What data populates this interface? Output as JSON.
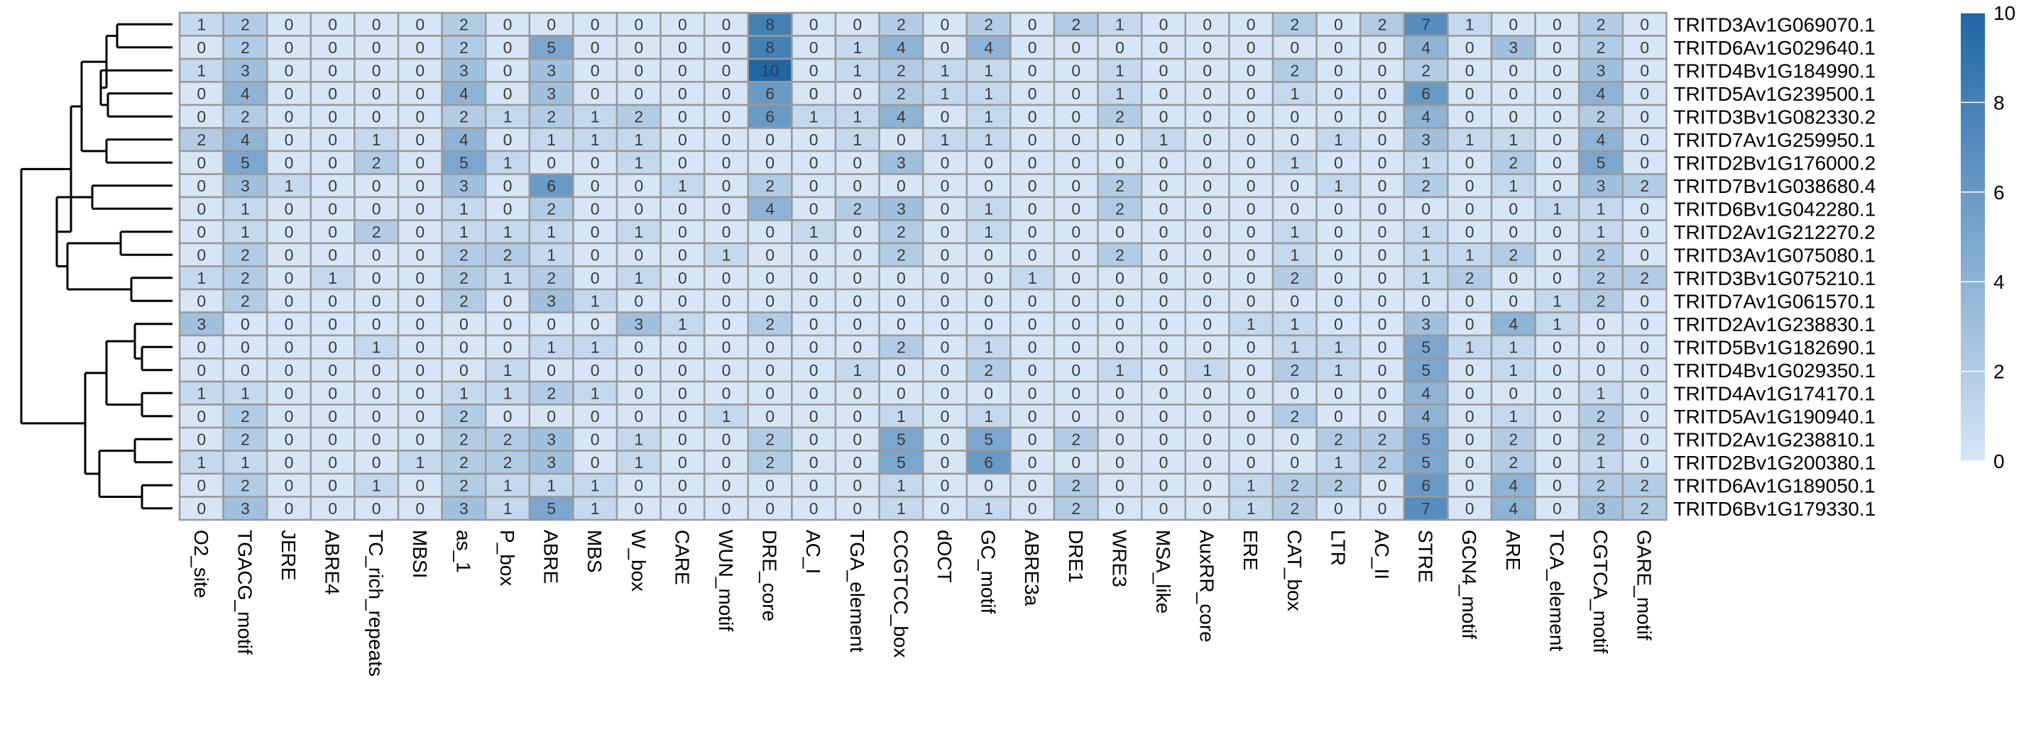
{
  "chart_data": {
    "type": "heatmap",
    "title": "",
    "xlabel": "",
    "ylabel": "",
    "columns": [
      "O2_site",
      "TGACG_motif",
      "JERE",
      "ABRE4",
      "TC_rich_repeats",
      "MBSI",
      "as_1",
      "P_box",
      "ABRE",
      "MBS",
      "W_box",
      "CARE",
      "WUN_motif",
      "DRE_core",
      "AC_I",
      "TGA_element",
      "CCGTCC_box",
      "dOCT",
      "GC_motif",
      "ABRE3a",
      "DRE1",
      "WRE3",
      "MSA_like",
      "AuxRR_core",
      "ERE",
      "CAT_box",
      "LTR",
      "AC_II",
      "STRE",
      "GCN4_motif",
      "ARE",
      "TCA_element",
      "CGTCA_motif",
      "GARE_motif"
    ],
    "rows": [
      "TRITD3Av1G069070.1",
      "TRITD6Av1G029640.1",
      "TRITD4Bv1G184990.1",
      "TRITD5Av1G239500.1",
      "TRITD3Bv1G082330.2",
      "TRITD7Av1G259950.1",
      "TRITD2Bv1G176000.2",
      "TRITD7Bv1G038680.4",
      "TRITD6Bv1G042280.1",
      "TRITD2Av1G212270.2",
      "TRITD3Av1G075080.1",
      "TRITD3Bv1G075210.1",
      "TRITD7Av1G061570.1",
      "TRITD2Av1G238830.1",
      "TRITD5Bv1G182690.1",
      "TRITD4Bv1G029350.1",
      "TRITD4Av1G174170.1",
      "TRITD5Av1G190940.1",
      "TRITD2Av1G238810.1",
      "TRITD2Bv1G200380.1",
      "TRITD6Av1G189050.1",
      "TRITD6Bv1G179330.1"
    ],
    "values": [
      [
        1,
        2,
        0,
        0,
        0,
        0,
        2,
        0,
        0,
        0,
        0,
        0,
        0,
        8,
        0,
        0,
        2,
        0,
        2,
        0,
        2,
        1,
        0,
        0,
        0,
        2,
        0,
        2,
        7,
        1,
        0,
        0,
        2,
        0
      ],
      [
        0,
        2,
        0,
        0,
        0,
        0,
        2,
        0,
        5,
        0,
        0,
        0,
        0,
        8,
        0,
        1,
        4,
        0,
        4,
        0,
        0,
        0,
        0,
        0,
        0,
        0,
        0,
        0,
        4,
        0,
        3,
        0,
        2,
        0
      ],
      [
        1,
        3,
        0,
        0,
        0,
        0,
        3,
        0,
        3,
        0,
        0,
        0,
        0,
        10,
        0,
        1,
        2,
        1,
        1,
        0,
        0,
        1,
        0,
        0,
        0,
        2,
        0,
        0,
        2,
        0,
        0,
        0,
        3,
        0
      ],
      [
        0,
        4,
        0,
        0,
        0,
        0,
        4,
        0,
        3,
        0,
        0,
        0,
        0,
        6,
        0,
        0,
        2,
        1,
        1,
        0,
        0,
        1,
        0,
        0,
        0,
        1,
        0,
        0,
        6,
        0,
        0,
        0,
        4,
        0
      ],
      [
        0,
        2,
        0,
        0,
        0,
        0,
        2,
        1,
        2,
        1,
        2,
        0,
        0,
        6,
        1,
        1,
        4,
        0,
        1,
        0,
        0,
        2,
        0,
        0,
        0,
        0,
        0,
        0,
        4,
        0,
        0,
        0,
        2,
        0
      ],
      [
        2,
        4,
        0,
        0,
        1,
        0,
        4,
        0,
        1,
        1,
        1,
        0,
        0,
        0,
        0,
        1,
        0,
        1,
        1,
        0,
        0,
        0,
        1,
        0,
        0,
        0,
        1,
        0,
        3,
        1,
        1,
        0,
        4,
        0
      ],
      [
        0,
        5,
        0,
        0,
        2,
        0,
        5,
        1,
        0,
        0,
        1,
        0,
        0,
        0,
        0,
        0,
        3,
        0,
        0,
        0,
        0,
        0,
        0,
        0,
        0,
        1,
        0,
        0,
        1,
        0,
        2,
        0,
        5,
        0
      ],
      [
        0,
        3,
        1,
        0,
        0,
        0,
        3,
        0,
        6,
        0,
        0,
        1,
        0,
        2,
        0,
        0,
        0,
        0,
        0,
        0,
        0,
        2,
        0,
        0,
        0,
        0,
        1,
        0,
        2,
        0,
        1,
        0,
        3,
        2
      ],
      [
        0,
        1,
        0,
        0,
        0,
        0,
        1,
        0,
        2,
        0,
        0,
        0,
        0,
        4,
        0,
        2,
        3,
        0,
        1,
        0,
        0,
        2,
        0,
        0,
        0,
        0,
        0,
        0,
        0,
        0,
        0,
        1,
        1,
        0
      ],
      [
        0,
        1,
        0,
        0,
        2,
        0,
        1,
        1,
        1,
        0,
        1,
        0,
        0,
        0,
        1,
        0,
        2,
        0,
        1,
        0,
        0,
        0,
        0,
        0,
        0,
        1,
        0,
        0,
        1,
        0,
        0,
        0,
        1,
        0
      ],
      [
        0,
        2,
        0,
        0,
        0,
        0,
        2,
        2,
        1,
        0,
        0,
        0,
        1,
        0,
        0,
        0,
        2,
        0,
        0,
        0,
        0,
        2,
        0,
        0,
        0,
        1,
        0,
        0,
        1,
        1,
        2,
        0,
        2,
        0
      ],
      [
        1,
        2,
        0,
        1,
        0,
        0,
        2,
        1,
        2,
        0,
        1,
        0,
        0,
        0,
        0,
        0,
        0,
        0,
        0,
        1,
        0,
        0,
        0,
        0,
        0,
        2,
        0,
        0,
        1,
        2,
        0,
        0,
        2,
        2
      ],
      [
        0,
        2,
        0,
        0,
        0,
        0,
        2,
        0,
        3,
        1,
        0,
        0,
        0,
        0,
        0,
        0,
        0,
        0,
        0,
        0,
        0,
        0,
        0,
        0,
        0,
        0,
        0,
        0,
        0,
        0,
        0,
        1,
        2,
        0
      ],
      [
        3,
        0,
        0,
        0,
        0,
        0,
        0,
        0,
        0,
        0,
        3,
        1,
        0,
        2,
        0,
        0,
        0,
        0,
        0,
        0,
        0,
        0,
        0,
        0,
        1,
        1,
        0,
        0,
        3,
        0,
        4,
        1,
        0,
        0
      ],
      [
        0,
        0,
        0,
        0,
        1,
        0,
        0,
        0,
        1,
        1,
        0,
        0,
        0,
        0,
        0,
        0,
        2,
        0,
        1,
        0,
        0,
        0,
        0,
        0,
        0,
        1,
        1,
        0,
        5,
        1,
        1,
        0,
        0,
        0
      ],
      [
        0,
        0,
        0,
        0,
        0,
        0,
        0,
        1,
        0,
        0,
        0,
        0,
        0,
        0,
        0,
        1,
        0,
        0,
        2,
        0,
        0,
        1,
        0,
        1,
        0,
        2,
        1,
        0,
        5,
        0,
        1,
        0,
        0,
        0
      ],
      [
        1,
        1,
        0,
        0,
        0,
        0,
        1,
        1,
        2,
        1,
        0,
        0,
        0,
        0,
        0,
        0,
        0,
        0,
        0,
        0,
        0,
        0,
        0,
        0,
        0,
        0,
        0,
        0,
        4,
        0,
        0,
        0,
        1,
        0
      ],
      [
        0,
        2,
        0,
        0,
        0,
        0,
        2,
        0,
        0,
        0,
        0,
        0,
        1,
        0,
        0,
        0,
        1,
        0,
        1,
        0,
        0,
        0,
        0,
        0,
        0,
        2,
        0,
        0,
        4,
        0,
        1,
        0,
        2,
        0
      ],
      [
        0,
        2,
        0,
        0,
        0,
        0,
        2,
        2,
        3,
        0,
        1,
        0,
        0,
        2,
        0,
        0,
        5,
        0,
        5,
        0,
        2,
        0,
        0,
        0,
        0,
        0,
        2,
        2,
        5,
        0,
        2,
        0,
        2,
        0
      ],
      [
        1,
        1,
        0,
        0,
        0,
        1,
        2,
        2,
        3,
        0,
        1,
        0,
        0,
        2,
        0,
        0,
        5,
        0,
        6,
        0,
        0,
        0,
        0,
        0,
        0,
        0,
        1,
        2,
        5,
        0,
        2,
        0,
        1,
        0
      ],
      [
        0,
        2,
        0,
        0,
        1,
        0,
        2,
        1,
        1,
        1,
        0,
        0,
        0,
        0,
        0,
        0,
        1,
        0,
        0,
        0,
        2,
        0,
        0,
        0,
        1,
        2,
        2,
        0,
        6,
        0,
        4,
        0,
        2,
        2
      ],
      [
        0,
        3,
        0,
        0,
        0,
        0,
        3,
        1,
        5,
        1,
        0,
        0,
        0,
        0,
        0,
        0,
        1,
        0,
        1,
        0,
        2,
        0,
        0,
        0,
        1,
        2,
        0,
        0,
        7,
        0,
        4,
        0,
        3,
        2
      ]
    ],
    "color_scale": {
      "min": 0,
      "max": 10,
      "low_color": "#d6e6f6",
      "high_color": "#2166a4",
      "ticks": [
        0,
        2,
        4,
        6,
        8,
        10
      ]
    },
    "cell_border_color": "#999999",
    "row_dendrogram": true,
    "legend_placement": "right"
  }
}
